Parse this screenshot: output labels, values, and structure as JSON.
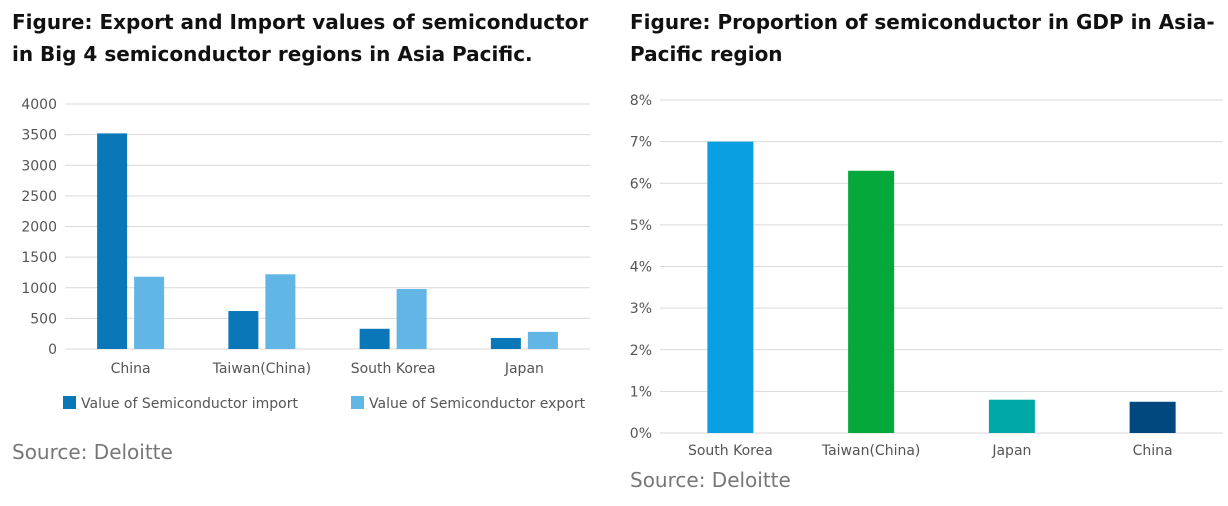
{
  "left": {
    "title": "Figure: Export and Import values of semiconductor in Big 4 semiconductor regions in Asia Pacific.",
    "source": "Source: Deloitte"
  },
  "right": {
    "title": "Figure: Proportion of semiconductor in GDP in Asia-Pacific region",
    "source": "Source: Deloitte"
  },
  "chart_data": [
    {
      "type": "bar",
      "title": "Figure: Export and Import values of semiconductor in Big 4 semiconductor regions in Asia Pacific.",
      "categories": [
        "China",
        "Taiwan(China)",
        "South Korea",
        "Japan"
      ],
      "series": [
        {
          "name": "Value of Semiconductor import",
          "values": [
            3520,
            620,
            330,
            180
          ],
          "color": "#0a78b8"
        },
        {
          "name": "Value of Semiconductor export",
          "values": [
            1180,
            1220,
            980,
            280
          ],
          "color": "#62b6e6"
        }
      ],
      "ylim": [
        0,
        4000
      ],
      "yticks": [
        "0",
        "500",
        "1000",
        "1500",
        "2000",
        "2500",
        "3000",
        "3500",
        "4000"
      ],
      "grid": true,
      "legend": "bottom"
    },
    {
      "type": "bar",
      "title": "Figure: Proportion of semiconductor in GDP in Asia-Pacific region",
      "categories": [
        "South Korea",
        "Taiwan(China)",
        "Japan",
        "China"
      ],
      "values": [
        7.0,
        6.3,
        0.8,
        0.75
      ],
      "colors": [
        "#0a9fe0",
        "#04a83b",
        "#00a9a8",
        "#00487e"
      ],
      "ylim": [
        0,
        8
      ],
      "yticks": [
        "0%",
        "1%",
        "2%",
        "3%",
        "4%",
        "5%",
        "6%",
        "7%",
        "8%"
      ],
      "grid": true
    }
  ]
}
